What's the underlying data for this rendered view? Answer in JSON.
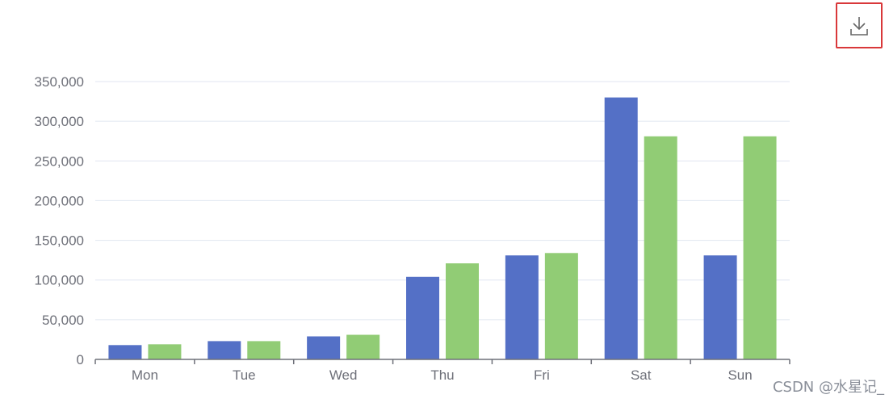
{
  "colors": {
    "series_1": "#5470c6",
    "series_2": "#91cc75",
    "axis": "#6e7079",
    "grid": "#e0e6f1",
    "toolbox_highlight": "#d9383a",
    "toolbox_icon": "#666666"
  },
  "toolbox": {
    "download_icon": "download-icon"
  },
  "watermark": "CSDN @水星记_",
  "chart_data": {
    "type": "bar",
    "categories": [
      "Mon",
      "Tue",
      "Wed",
      "Thu",
      "Fri",
      "Sat",
      "Sun"
    ],
    "series": [
      {
        "values": [
          18000,
          23000,
          29000,
          104000,
          131000,
          330000,
          131000
        ]
      },
      {
        "values": [
          19000,
          23000,
          31000,
          121000,
          134000,
          281000,
          281000
        ]
      }
    ],
    "title": "",
    "xlabel": "",
    "ylabel": "",
    "ylim": [
      0,
      350000
    ],
    "yticks": [
      "0",
      "50,000",
      "100,000",
      "150,000",
      "200,000",
      "250,000",
      "300,000",
      "350,000"
    ],
    "grid": true,
    "legend": "none"
  }
}
